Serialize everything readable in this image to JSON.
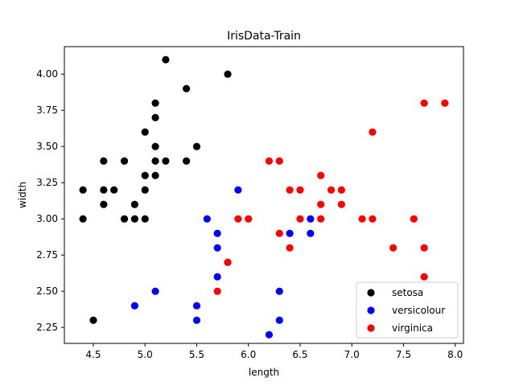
{
  "chart_data": {
    "type": "scatter",
    "title": "IrisData-Train",
    "xlabel": "length",
    "ylabel": "width",
    "xlim": [
      4.22,
      8.08
    ],
    "ylim": [
      2.14,
      4.19
    ],
    "xticks": [
      "4.5",
      "5.0",
      "5.5",
      "6.0",
      "6.5",
      "7.0",
      "7.5",
      "8.0"
    ],
    "yticks": [
      "2.25",
      "2.50",
      "2.75",
      "3.00",
      "3.25",
      "3.50",
      "3.75",
      "4.00"
    ],
    "grid": false,
    "legend_position": "lower-right",
    "series": [
      {
        "name": "setosa",
        "color": "#000000",
        "points": [
          [
            5.2,
            4.1
          ],
          [
            5.8,
            4.0
          ],
          [
            5.4,
            3.9
          ],
          [
            5.1,
            3.8
          ],
          [
            5.1,
            3.7
          ],
          [
            5.0,
            3.6
          ],
          [
            5.1,
            3.5
          ],
          [
            5.5,
            3.5
          ],
          [
            4.6,
            3.4
          ],
          [
            4.8,
            3.4
          ],
          [
            5.1,
            3.4
          ],
          [
            5.2,
            3.4
          ],
          [
            5.4,
            3.4
          ],
          [
            5.0,
            3.3
          ],
          [
            5.1,
            3.3
          ],
          [
            4.4,
            3.2
          ],
          [
            4.6,
            3.2
          ],
          [
            4.7,
            3.2
          ],
          [
            5.0,
            3.2
          ],
          [
            4.6,
            3.1
          ],
          [
            4.9,
            3.1
          ],
          [
            4.4,
            3.0
          ],
          [
            4.8,
            3.0
          ],
          [
            4.9,
            3.0
          ],
          [
            5.0,
            3.0
          ],
          [
            4.5,
            2.3
          ]
        ]
      },
      {
        "name": "versicolour",
        "color": "#0000ff",
        "points": [
          [
            5.9,
            3.2
          ],
          [
            5.6,
            3.0
          ],
          [
            5.7,
            2.9
          ],
          [
            6.4,
            2.9
          ],
          [
            6.6,
            3.0
          ],
          [
            6.6,
            2.9
          ],
          [
            5.7,
            2.8
          ],
          [
            5.7,
            2.6
          ],
          [
            5.8,
            2.7
          ],
          [
            5.1,
            2.5
          ],
          [
            6.3,
            2.5
          ],
          [
            4.9,
            2.4
          ],
          [
            5.5,
            2.4
          ],
          [
            5.5,
            2.3
          ],
          [
            6.3,
            2.3
          ],
          [
            6.2,
            2.2
          ]
        ]
      },
      {
        "name": "virginica",
        "color": "#ff0000",
        "points": [
          [
            7.7,
            3.8
          ],
          [
            7.9,
            3.8
          ],
          [
            7.2,
            3.6
          ],
          [
            6.2,
            3.4
          ],
          [
            6.3,
            3.4
          ],
          [
            6.7,
            3.3
          ],
          [
            6.4,
            3.2
          ],
          [
            6.5,
            3.2
          ],
          [
            6.8,
            3.2
          ],
          [
            6.9,
            3.2
          ],
          [
            6.7,
            3.1
          ],
          [
            6.9,
            3.1
          ],
          [
            5.9,
            3.0
          ],
          [
            6.0,
            3.0
          ],
          [
            6.5,
            3.0
          ],
          [
            6.7,
            3.0
          ],
          [
            7.1,
            3.0
          ],
          [
            7.2,
            3.0
          ],
          [
            7.6,
            3.0
          ],
          [
            6.3,
            2.9
          ],
          [
            6.4,
            2.8
          ],
          [
            7.4,
            2.8
          ],
          [
            7.7,
            2.8
          ],
          [
            5.8,
            2.7
          ],
          [
            5.7,
            2.5
          ],
          [
            7.7,
            2.6
          ]
        ]
      }
    ]
  }
}
